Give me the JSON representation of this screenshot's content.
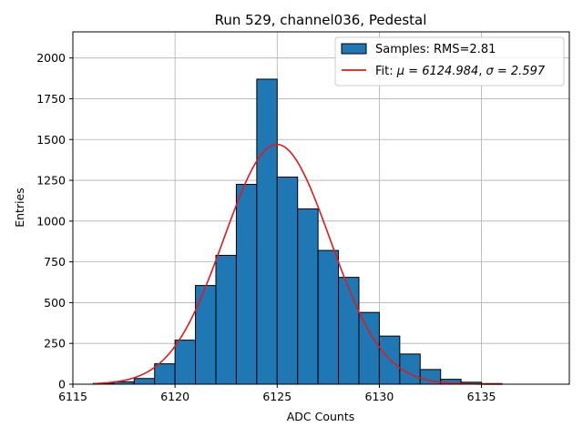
{
  "chart_data": {
    "type": "bar",
    "title": "Run 529, channel036, Pedestal",
    "xlabel": "ADC Counts",
    "ylabel": "Entries",
    "xlim": [
      6115,
      6139.3
    ],
    "ylim": [
      0,
      2160
    ],
    "xticks": [
      6115,
      6120,
      6125,
      6130,
      6135
    ],
    "yticks": [
      0,
      250,
      500,
      750,
      1000,
      1250,
      1500,
      1750,
      2000
    ],
    "grid": true,
    "legend_position": "top-right",
    "histogram": {
      "name": "Samples: RMS=2.81",
      "color": "#1f77b4",
      "bin_edges": [
        6116,
        6117,
        6118,
        6119,
        6120,
        6121,
        6122,
        6123,
        6124,
        6125,
        6126,
        6127,
        6128,
        6129,
        6130,
        6131,
        6132,
        6133,
        6134,
        6135,
        6136
      ],
      "counts": [
        5,
        15,
        35,
        125,
        270,
        605,
        790,
        1225,
        1870,
        1270,
        1075,
        820,
        655,
        440,
        295,
        185,
        90,
        30,
        12,
        4
      ]
    },
    "fit": {
      "name_prefix": "Fit: ",
      "mu_label": "μ = 6124.984",
      "sep": ", ",
      "sigma_label": "σ = 2.597",
      "color": "#e31a1c",
      "mu": 6124.984,
      "sigma": 2.597,
      "amplitude": 1470,
      "x_range": [
        6116,
        6136
      ]
    }
  }
}
